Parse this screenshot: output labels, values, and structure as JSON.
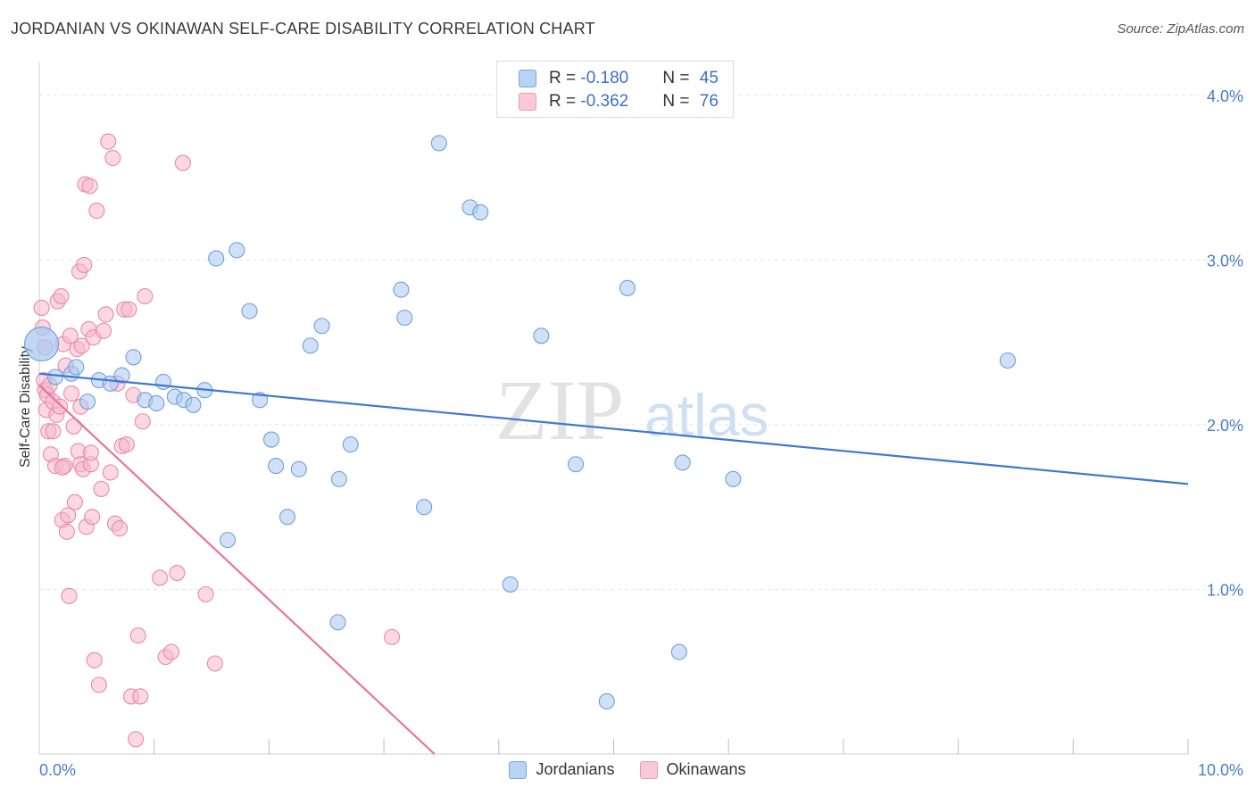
{
  "title": "JORDANIAN VS OKINAWAN SELF-CARE DISABILITY CORRELATION CHART",
  "source": "Source: ZipAtlas.com",
  "watermark": {
    "zip": "ZIP",
    "atlas": "atlas"
  },
  "legend": {
    "jordanians": {
      "r_label": "R = ",
      "r_value": "-0.180",
      "n_label": "N = ",
      "n_value": "45"
    },
    "okinawans": {
      "r_label": "R = ",
      "r_value": "-0.362",
      "n_label": "N = ",
      "n_value": "76"
    }
  },
  "bottom_legend": {
    "jordanians": "Jordanians",
    "okinawans": "Okinawans"
  },
  "colors": {
    "jordanians_fill": "#a9c8f0",
    "jordanians_stroke": "#6f9fd8",
    "jordanians_line": "#3d78d4",
    "okinawans_fill": "#f7b8cc",
    "okinawans_stroke": "#e88aa8",
    "okinawans_line": "#e8739b",
    "axis_text": "#4a7cc7",
    "grid": "#e6e6e6"
  },
  "chart_data": {
    "type": "scatter",
    "title": "JORDANIAN VS OKINAWAN SELF-CARE DISABILITY CORRELATION CHART",
    "xlabel": "",
    "ylabel": "Self-Care Disability",
    "xlim": [
      0,
      10
    ],
    "ylim": [
      0,
      4.2
    ],
    "x_tick_labels": [
      "0.0%",
      "10.0%"
    ],
    "y_ticks": [
      1,
      2,
      3,
      4
    ],
    "y_tick_labels": [
      "1.0%",
      "2.0%",
      "3.0%",
      "4.0%"
    ],
    "series": [
      {
        "name": "Jordanians",
        "trend": {
          "x": [
            0,
            10
          ],
          "y": [
            2.31,
            1.64
          ]
        },
        "points": [
          {
            "x": 0.02,
            "y": 2.49,
            "big": true
          },
          {
            "x": 0.14,
            "y": 2.29
          },
          {
            "x": 0.28,
            "y": 2.31
          },
          {
            "x": 0.32,
            "y": 2.35
          },
          {
            "x": 0.42,
            "y": 2.14
          },
          {
            "x": 0.52,
            "y": 2.27
          },
          {
            "x": 0.62,
            "y": 2.25
          },
          {
            "x": 0.72,
            "y": 2.3
          },
          {
            "x": 0.82,
            "y": 2.41
          },
          {
            "x": 0.92,
            "y": 2.15
          },
          {
            "x": 1.02,
            "y": 2.13
          },
          {
            "x": 1.08,
            "y": 2.26
          },
          {
            "x": 1.18,
            "y": 2.17
          },
          {
            "x": 1.26,
            "y": 2.15
          },
          {
            "x": 1.34,
            "y": 2.12
          },
          {
            "x": 1.44,
            "y": 2.21
          },
          {
            "x": 1.54,
            "y": 3.01
          },
          {
            "x": 1.72,
            "y": 3.06
          },
          {
            "x": 1.83,
            "y": 2.69
          },
          {
            "x": 1.92,
            "y": 2.15
          },
          {
            "x": 2.02,
            "y": 1.91
          },
          {
            "x": 2.06,
            "y": 1.75
          },
          {
            "x": 2.16,
            "y": 1.44
          },
          {
            "x": 2.26,
            "y": 1.73
          },
          {
            "x": 2.36,
            "y": 2.48
          },
          {
            "x": 2.46,
            "y": 2.6
          },
          {
            "x": 2.61,
            "y": 1.67
          },
          {
            "x": 2.71,
            "y": 1.88
          },
          {
            "x": 3.15,
            "y": 2.82
          },
          {
            "x": 3.18,
            "y": 2.65
          },
          {
            "x": 3.35,
            "y": 1.5
          },
          {
            "x": 3.48,
            "y": 3.71
          },
          {
            "x": 3.75,
            "y": 3.32
          },
          {
            "x": 3.84,
            "y": 3.29
          },
          {
            "x": 4.1,
            "y": 1.03
          },
          {
            "x": 4.37,
            "y": 2.54
          },
          {
            "x": 4.67,
            "y": 1.76
          },
          {
            "x": 4.94,
            "y": 0.32
          },
          {
            "x": 5.12,
            "y": 2.83
          },
          {
            "x": 5.57,
            "y": 0.62
          },
          {
            "x": 5.6,
            "y": 1.77
          },
          {
            "x": 6.04,
            "y": 1.67
          },
          {
            "x": 8.43,
            "y": 2.39
          },
          {
            "x": 1.64,
            "y": 1.3
          },
          {
            "x": 2.6,
            "y": 0.8
          }
        ]
      },
      {
        "name": "Okinawans",
        "trend": {
          "x": [
            0,
            3.44
          ],
          "y": [
            2.24,
            0
          ]
        },
        "points": [
          {
            "x": 0.02,
            "y": 2.71
          },
          {
            "x": 0.03,
            "y": 2.59
          },
          {
            "x": 0.04,
            "y": 2.27
          },
          {
            "x": 0.05,
            "y": 2.21
          },
          {
            "x": 0.06,
            "y": 2.09
          },
          {
            "x": 0.07,
            "y": 2.18
          },
          {
            "x": 0.08,
            "y": 1.96
          },
          {
            "x": 0.09,
            "y": 2.24
          },
          {
            "x": 0.1,
            "y": 1.82
          },
          {
            "x": 0.12,
            "y": 2.14
          },
          {
            "x": 0.14,
            "y": 1.75
          },
          {
            "x": 0.15,
            "y": 2.06
          },
          {
            "x": 0.16,
            "y": 2.75
          },
          {
            "x": 0.18,
            "y": 2.11
          },
          {
            "x": 0.19,
            "y": 2.78
          },
          {
            "x": 0.2,
            "y": 1.42
          },
          {
            "x": 0.21,
            "y": 2.49
          },
          {
            "x": 0.22,
            "y": 1.75
          },
          {
            "x": 0.23,
            "y": 2.36
          },
          {
            "x": 0.24,
            "y": 1.35
          },
          {
            "x": 0.25,
            "y": 1.45
          },
          {
            "x": 0.26,
            "y": 0.96
          },
          {
            "x": 0.27,
            "y": 2.54
          },
          {
            "x": 0.28,
            "y": 2.19
          },
          {
            "x": 0.3,
            "y": 1.99
          },
          {
            "x": 0.31,
            "y": 1.53
          },
          {
            "x": 0.33,
            "y": 2.46
          },
          {
            "x": 0.34,
            "y": 1.84
          },
          {
            "x": 0.35,
            "y": 2.93
          },
          {
            "x": 0.36,
            "y": 1.76
          },
          {
            "x": 0.37,
            "y": 2.48
          },
          {
            "x": 0.38,
            "y": 1.73
          },
          {
            "x": 0.39,
            "y": 2.97
          },
          {
            "x": 0.4,
            "y": 3.46
          },
          {
            "x": 0.41,
            "y": 1.38
          },
          {
            "x": 0.43,
            "y": 2.58
          },
          {
            "x": 0.44,
            "y": 3.45
          },
          {
            "x": 0.45,
            "y": 1.76
          },
          {
            "x": 0.46,
            "y": 1.44
          },
          {
            "x": 0.47,
            "y": 2.53
          },
          {
            "x": 0.48,
            "y": 0.57
          },
          {
            "x": 0.5,
            "y": 3.3
          },
          {
            "x": 0.52,
            "y": 0.42
          },
          {
            "x": 0.54,
            "y": 1.61
          },
          {
            "x": 0.56,
            "y": 2.57
          },
          {
            "x": 0.58,
            "y": 2.67
          },
          {
            "x": 0.6,
            "y": 3.72
          },
          {
            "x": 0.62,
            "y": 1.71
          },
          {
            "x": 0.64,
            "y": 3.62
          },
          {
            "x": 0.66,
            "y": 1.4
          },
          {
            "x": 0.68,
            "y": 2.25
          },
          {
            "x": 0.7,
            "y": 1.37
          },
          {
            "x": 0.72,
            "y": 1.87
          },
          {
            "x": 0.74,
            "y": 2.7
          },
          {
            "x": 0.76,
            "y": 1.88
          },
          {
            "x": 0.78,
            "y": 2.7
          },
          {
            "x": 0.8,
            "y": 0.35
          },
          {
            "x": 0.82,
            "y": 2.18
          },
          {
            "x": 0.84,
            "y": 0.09
          },
          {
            "x": 0.86,
            "y": 0.72
          },
          {
            "x": 0.88,
            "y": 0.35
          },
          {
            "x": 0.9,
            "y": 2.02
          },
          {
            "x": 0.92,
            "y": 2.78
          },
          {
            "x": 1.05,
            "y": 1.07
          },
          {
            "x": 1.1,
            "y": 0.59
          },
          {
            "x": 1.15,
            "y": 0.62
          },
          {
            "x": 1.2,
            "y": 1.1
          },
          {
            "x": 1.25,
            "y": 3.59
          },
          {
            "x": 1.45,
            "y": 0.97
          },
          {
            "x": 1.53,
            "y": 0.55
          },
          {
            "x": 3.07,
            "y": 0.71
          },
          {
            "x": 0.2,
            "y": 1.74
          },
          {
            "x": 0.36,
            "y": 2.11
          },
          {
            "x": 0.45,
            "y": 1.83
          },
          {
            "x": 0.12,
            "y": 1.96
          },
          {
            "x": 0.05,
            "y": 2.47
          }
        ]
      }
    ]
  }
}
